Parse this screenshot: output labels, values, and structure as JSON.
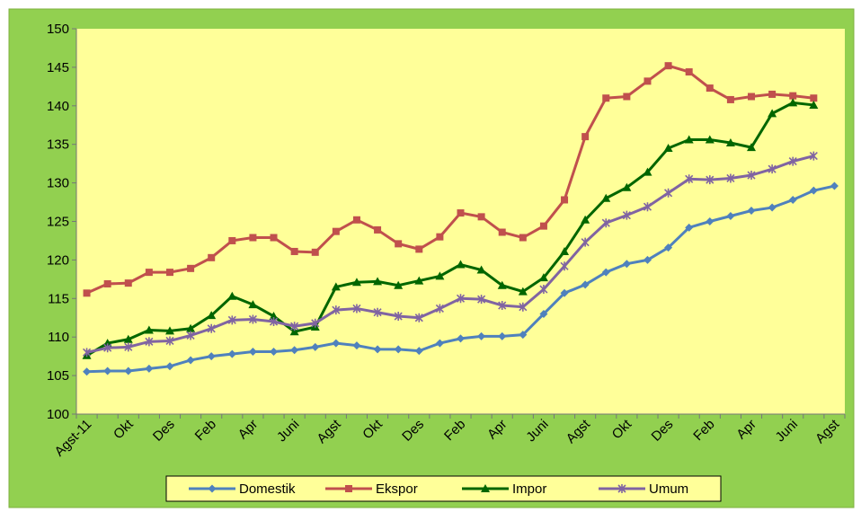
{
  "chart_data": {
    "type": "line",
    "categories": [
      "Agst-11",
      null,
      "Okt",
      null,
      "Des",
      null,
      "Feb",
      null,
      "Apr",
      null,
      "Juni",
      null,
      "Agst",
      null,
      "Okt",
      null,
      "Des",
      null,
      "Feb",
      null,
      "Apr",
      null,
      "Juni",
      null,
      "Agst",
      null,
      "Okt",
      null,
      "Des",
      null,
      "Feb",
      null,
      "Apr",
      null,
      "Juni",
      null,
      "Agst"
    ],
    "series": [
      {
        "name": "Domestik",
        "color": "#4f81bd",
        "marker": "diamond",
        "values": [
          105.5,
          105.6,
          105.6,
          105.9,
          106.2,
          107.0,
          107.5,
          107.8,
          108.1,
          108.1,
          108.3,
          108.7,
          109.2,
          108.9,
          108.4,
          108.4,
          108.2,
          109.2,
          109.8,
          110.1,
          110.1,
          110.3,
          113.0,
          115.7,
          116.8,
          118.4,
          119.5,
          120.0,
          121.6,
          124.2,
          125.0,
          125.7,
          126.4,
          126.8,
          127.8,
          129.0,
          129.6
        ]
      },
      {
        "name": "Ekspor",
        "color": "#c0504d",
        "marker": "square",
        "values": [
          115.7,
          116.9,
          117.0,
          118.4,
          118.4,
          118.9,
          120.3,
          122.5,
          122.9,
          122.9,
          121.1,
          121.0,
          123.7,
          125.2,
          123.9,
          122.1,
          121.4,
          123.0,
          126.1,
          125.6,
          123.6,
          122.9,
          124.4,
          127.8,
          136.0,
          141.0,
          141.2,
          143.2,
          145.2,
          144.4,
          142.3,
          140.8,
          141.2,
          141.5,
          141.3,
          141.0,
          null
        ]
      },
      {
        "name": "Impor",
        "color": "#006600",
        "marker": "triangle",
        "values": [
          107.6,
          109.2,
          109.7,
          110.9,
          110.8,
          111.1,
          112.8,
          115.3,
          114.2,
          112.7,
          110.7,
          111.3,
          116.5,
          117.1,
          117.2,
          116.7,
          117.3,
          117.9,
          119.4,
          118.7,
          116.7,
          115.9,
          117.7,
          121.1,
          125.2,
          128.0,
          129.4,
          131.4,
          134.5,
          135.6,
          135.6,
          135.2,
          134.6,
          139.0,
          140.4,
          140.1,
          null
        ]
      },
      {
        "name": "Umum",
        "color": "#8064a2",
        "marker": "star",
        "values": [
          108.0,
          108.6,
          108.7,
          109.4,
          109.5,
          110.2,
          111.1,
          112.2,
          112.3,
          112.0,
          111.4,
          111.8,
          113.5,
          113.7,
          113.2,
          112.7,
          112.5,
          113.7,
          115.0,
          114.9,
          114.1,
          113.9,
          116.2,
          119.2,
          122.3,
          124.8,
          125.8,
          126.9,
          128.7,
          130.5,
          130.4,
          130.6,
          131.0,
          131.8,
          132.8,
          133.5,
          null
        ]
      }
    ],
    "ylim": [
      100,
      150
    ],
    "yticks": [
      100,
      105,
      110,
      115,
      120,
      125,
      130,
      135,
      140,
      145,
      150
    ],
    "grid": false,
    "legend": "bottom"
  }
}
